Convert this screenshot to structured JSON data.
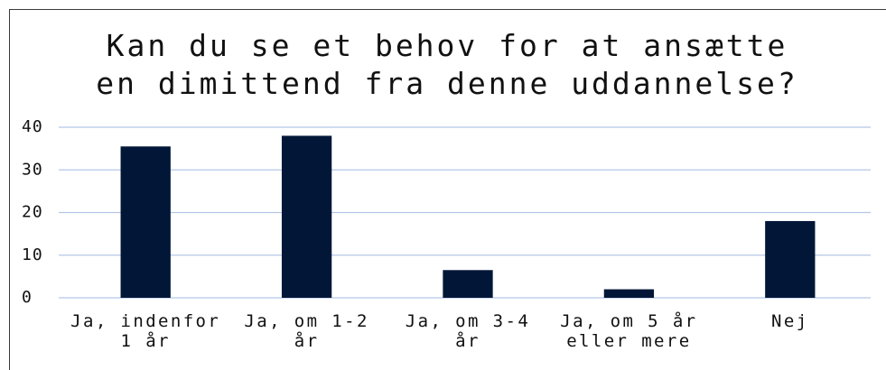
{
  "chart_data": {
    "type": "bar",
    "title": "Kan du se et behov for at ansætte en dimittend fra denne uddannelse?",
    "categories": [
      "Ja, indenfor 1 år",
      "Ja, om 1-2 år",
      "Ja, om 3-4 år",
      "Ja, om 5 år eller mere",
      "Nej"
    ],
    "values": [
      35.5,
      38,
      6.5,
      2,
      18
    ],
    "color": "#021738",
    "ylim": [
      0,
      40
    ],
    "yticks": [
      0,
      10,
      20,
      30,
      40
    ],
    "grid": true
  }
}
